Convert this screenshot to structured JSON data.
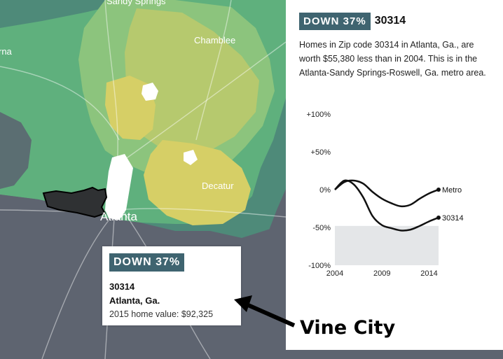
{
  "map": {
    "labels": {
      "sandy_springs": "Sandy Springs",
      "chamblee": "Chamblee",
      "decatur": "Decatur",
      "atlanta": "Atlanta",
      "marietta_fragment": "rna"
    },
    "colors": {
      "dark": "#5e6470",
      "teal_dark": "#4e8a79",
      "green": "#5fb07d",
      "green_light": "#8cc47d",
      "olive": "#b6c96e",
      "yellow": "#d6cf66",
      "white": "#ffffff"
    }
  },
  "panel": {
    "badge": "DOWN 37%",
    "zip": "30314",
    "description": "Homes in Zip code 30314 in Atlanta, Ga., are worth $55,380 less than in 2004. This is in the Atlanta-Sandy Springs-Roswell, Ga. metro area."
  },
  "chart_data": {
    "type": "line",
    "y_ticks": [
      "+100%",
      "+50%",
      "0%",
      "-50%",
      "-100%"
    ],
    "x_ticks": [
      "2004",
      "2009",
      "2014"
    ],
    "ylim": [
      -100,
      100
    ],
    "xlim": [
      2004,
      2015
    ],
    "shaded_range": [
      -100,
      -48
    ],
    "series": [
      {
        "name": "Metro",
        "x": [
          2004,
          2005,
          2006,
          2007,
          2008,
          2009,
          2010,
          2011,
          2012,
          2013,
          2014,
          2015
        ],
        "y": [
          0,
          10,
          12,
          8,
          -3,
          -12,
          -18,
          -22,
          -20,
          -12,
          -5,
          0
        ]
      },
      {
        "name": "30314",
        "x": [
          2004,
          2005,
          2006,
          2007,
          2008,
          2009,
          2010,
          2011,
          2012,
          2013,
          2014,
          2015
        ],
        "y": [
          0,
          12,
          7,
          -10,
          -35,
          -47,
          -51,
          -54,
          -53,
          -48,
          -42,
          -37
        ]
      }
    ]
  },
  "tooltip": {
    "badge": "DOWN 37%",
    "zip": "30314",
    "city": "Atlanta, Ga.",
    "value": "2015 home value: $92,325"
  },
  "annotation": {
    "text": "Vine City"
  }
}
